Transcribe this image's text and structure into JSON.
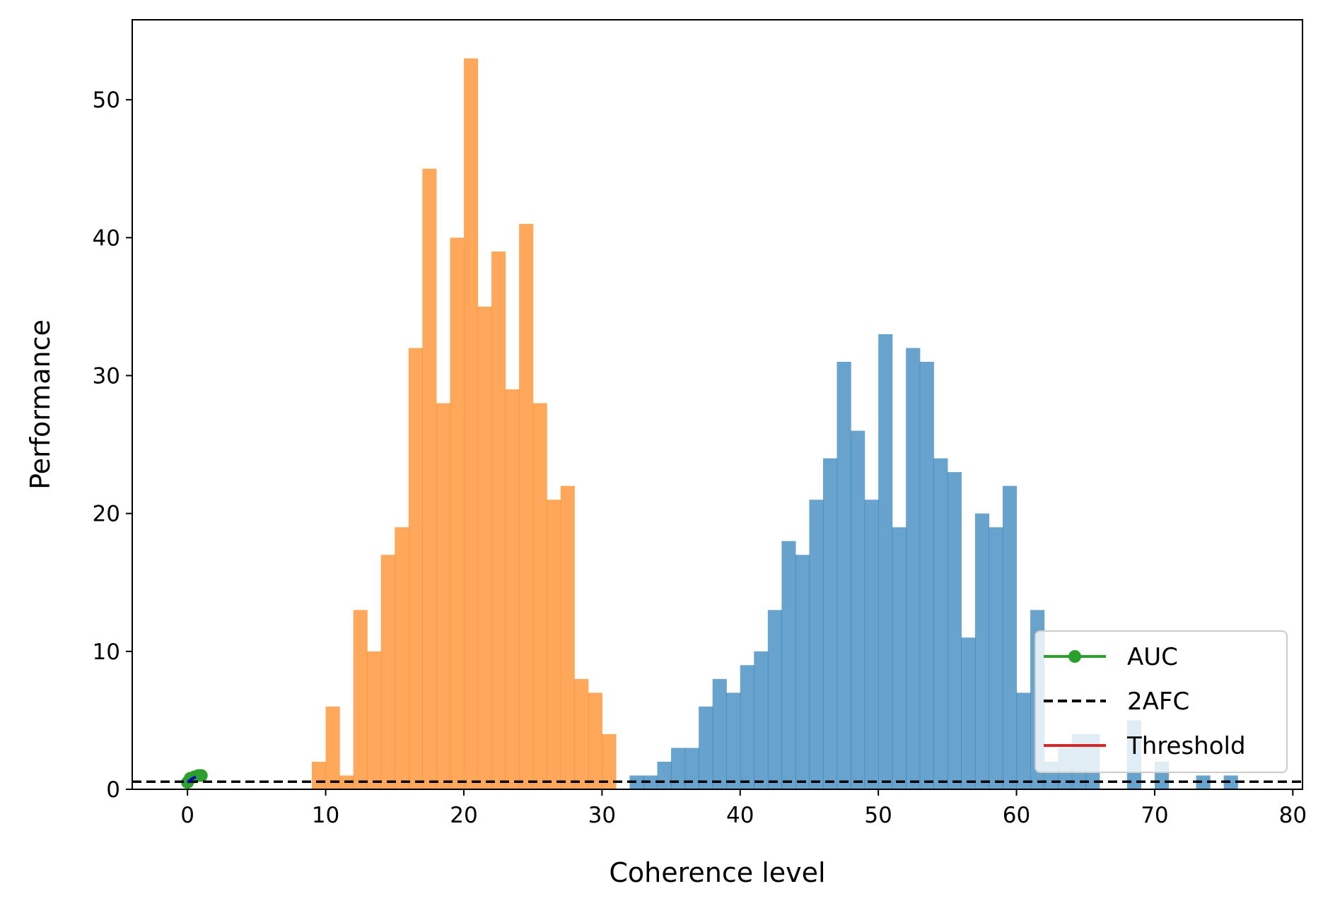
{
  "chart_data": {
    "type": "bar",
    "xlabel": "Coherence level",
    "ylabel": "Performance",
    "xlim": [
      -4,
      80.7
    ],
    "ylim": [
      0,
      55.8
    ],
    "xticks": [
      0,
      10,
      20,
      30,
      40,
      50,
      60,
      70,
      80
    ],
    "yticks": [
      0,
      10,
      20,
      30,
      40,
      50
    ],
    "grid": false,
    "legend_position": "lower-right",
    "histograms": [
      {
        "color": "#ff7f0e",
        "alpha": 0.68,
        "bin_start": 9,
        "bin_width": 1,
        "counts": [
          2,
          6,
          1,
          13,
          10,
          17,
          19,
          32,
          45,
          28,
          40,
          53,
          35,
          39,
          29,
          41,
          28,
          21,
          22,
          8,
          7,
          4
        ]
      },
      {
        "color": "#1f77b4",
        "alpha": 0.68,
        "bin_start": 32,
        "bin_width": 1,
        "counts": [
          1,
          1,
          2,
          3,
          3,
          6,
          8,
          7,
          9,
          10,
          13,
          18,
          17,
          21,
          24,
          31,
          26,
          21,
          33,
          19,
          32,
          31,
          24,
          23,
          11,
          20,
          19,
          22,
          7,
          13,
          2,
          3,
          4,
          4,
          0,
          0,
          5,
          0,
          2,
          0,
          0,
          1,
          0,
          1
        ]
      }
    ],
    "series": [
      {
        "name": "AUC",
        "type": "line-marker",
        "color": "#2ca02c",
        "x": [
          0,
          0.2,
          0.5,
          0.8,
          1.0
        ],
        "y": [
          0.5,
          0.8,
          0.9,
          1.0,
          1.0
        ]
      },
      {
        "name": "2AFC",
        "type": "hline",
        "style": "dashed",
        "color": "#000000",
        "y": 0.55
      },
      {
        "name": "Threshold",
        "type": "line",
        "color": "#d62728",
        "x": [],
        "y": []
      }
    ],
    "small_marker": {
      "color": "#0000cc",
      "x": [
        0,
        0.3,
        0.6
      ],
      "y": [
        0.5,
        0.75,
        0.9
      ]
    }
  }
}
